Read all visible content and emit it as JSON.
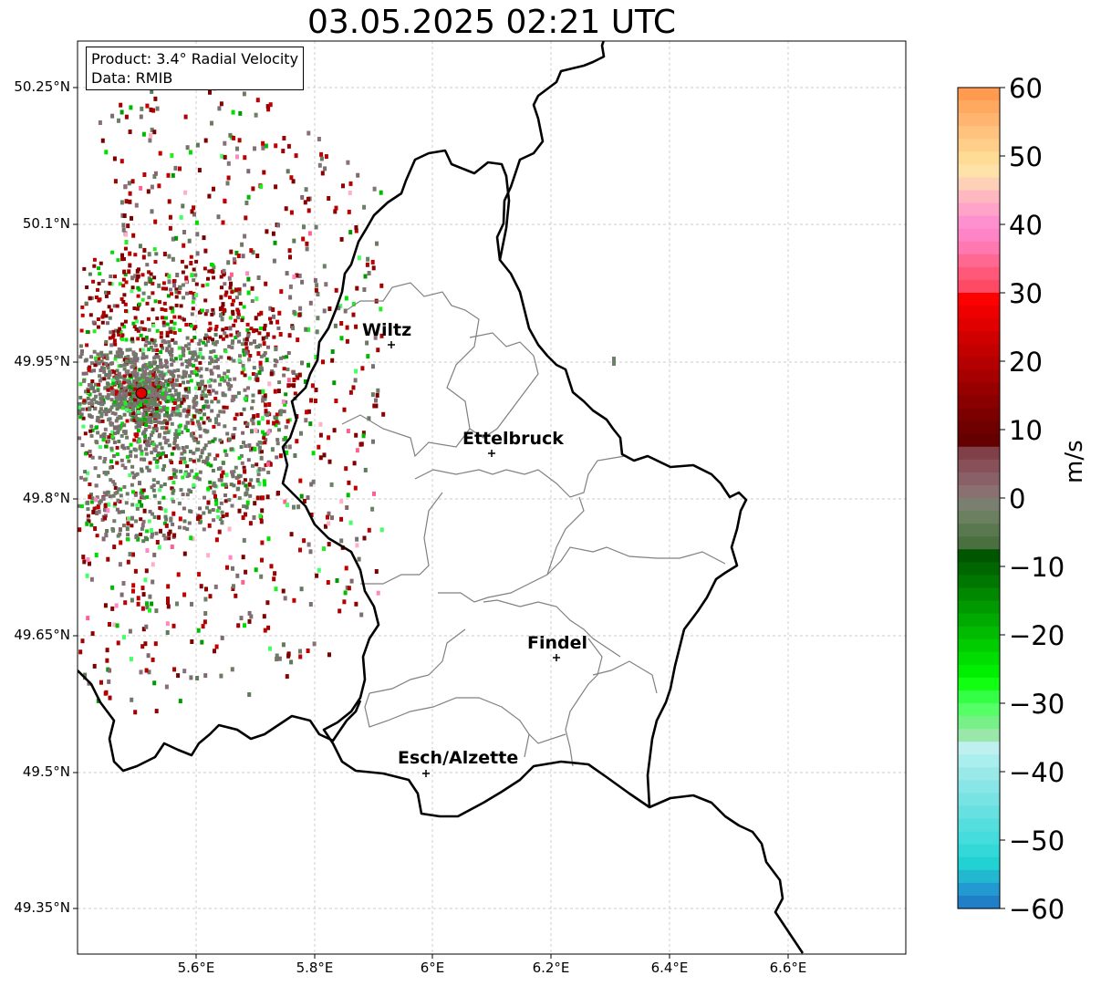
{
  "title": "03.05.2025 02:21 UTC",
  "info": {
    "product": "Product: 3.4° Radial Velocity",
    "data_source": "Data: RMIB"
  },
  "axes": {
    "lat_ticks": [
      "50.25°N",
      "50.1°N",
      "49.95°N",
      "49.8°N",
      "49.65°N",
      "49.5°N",
      "49.35°N"
    ],
    "lon_ticks": [
      "5.6°E",
      "5.8°E",
      "6°E",
      "6.2°E",
      "6.4°E",
      "6.6°E"
    ]
  },
  "cities": [
    {
      "name": "Wiltz"
    },
    {
      "name": "Ettelbruck"
    },
    {
      "name": "Findel"
    },
    {
      "name": "Esch/Alzette"
    }
  ],
  "colorbar": {
    "unit": "m/s",
    "min": -60,
    "max": 60,
    "tick_labels": [
      "60",
      "50",
      "40",
      "30",
      "20",
      "10",
      "0",
      "−10",
      "−20",
      "−30",
      "−40",
      "−50",
      "−60"
    ]
  },
  "colors": {
    "radar_site": "#e00000",
    "border": "#000000",
    "canton_border": "#808080"
  }
}
